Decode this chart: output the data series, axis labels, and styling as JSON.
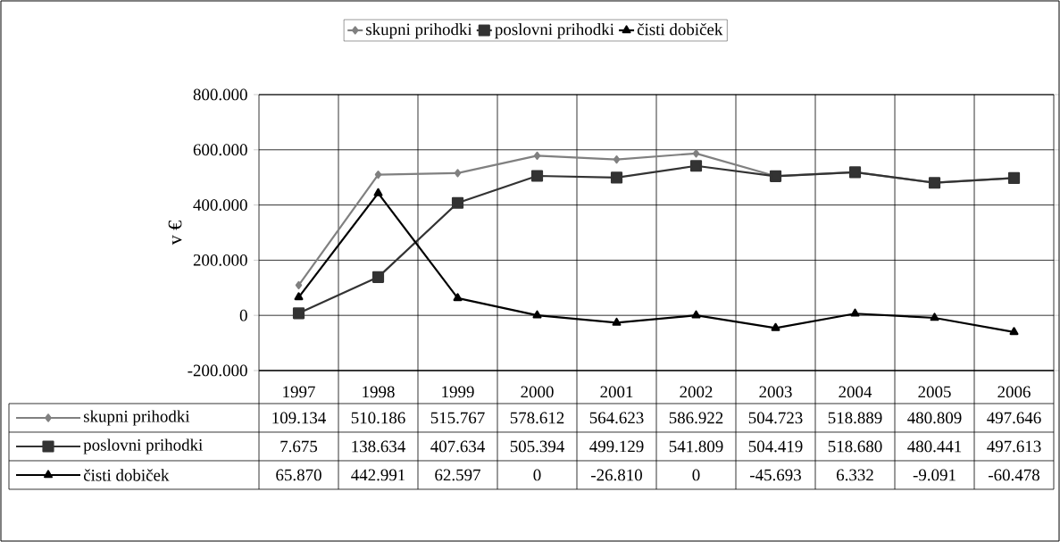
{
  "chart_data": {
    "type": "line",
    "ylabel": "v €",
    "categories": [
      "1997",
      "1998",
      "1999",
      "2000",
      "2001",
      "2002",
      "2003",
      "2004",
      "2005",
      "2006"
    ],
    "series": [
      {
        "name": "skupni prihodki",
        "color": "#808080",
        "marker": "diamond",
        "values": [
          109134,
          510186,
          515767,
          578612,
          564623,
          586922,
          504723,
          518889,
          480809,
          497646
        ],
        "value_labels": [
          "109.134",
          "510.186",
          "515.767",
          "578.612",
          "564.623",
          "586.922",
          "504.723",
          "518.889",
          "480.809",
          "497.646"
        ]
      },
      {
        "name": "poslovni prihodki",
        "color": "#333333",
        "marker": "square",
        "values": [
          7675,
          138634,
          407634,
          505394,
          499129,
          541809,
          504419,
          518680,
          480441,
          497613
        ],
        "value_labels": [
          "7.675",
          "138.634",
          "407.634",
          "505.394",
          "499.129",
          "541.809",
          "504.419",
          "518.680",
          "480.441",
          "497.613"
        ]
      },
      {
        "name": "čisti dobiček",
        "color": "#000000",
        "marker": "triangle",
        "values": [
          65870,
          442991,
          62597,
          0,
          -26810,
          0,
          -45693,
          6332,
          -9091,
          -60478
        ],
        "value_labels": [
          "65.870",
          "442.991",
          "62.597",
          "0",
          "-26.810",
          "0",
          "-45.693",
          "6.332",
          "-9.091",
          "-60.478"
        ]
      }
    ],
    "ylim": [
      -200000,
      800000
    ],
    "yticks": [
      {
        "value": -200000,
        "label": "-200.000"
      },
      0,
      {
        "value": 200000,
        "label": "200.000"
      },
      {
        "value": 400000,
        "label": "400.000"
      },
      {
        "value": 600000,
        "label": "600.000"
      },
      {
        "value": 800000,
        "label": "800.000"
      }
    ],
    "grid": true,
    "legend": "top"
  }
}
